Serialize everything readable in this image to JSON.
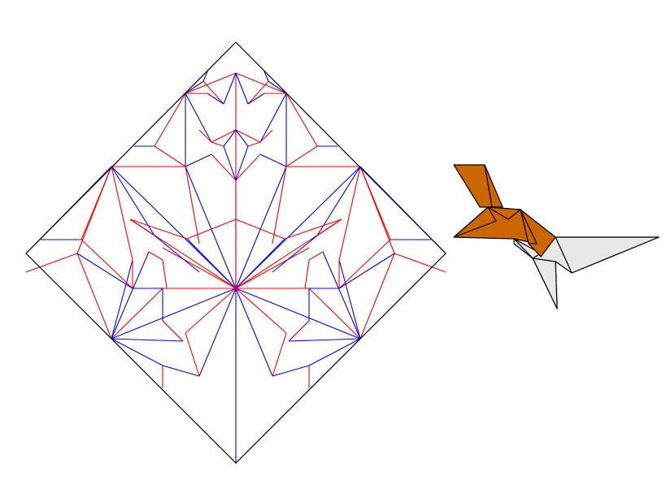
{
  "colors": {
    "border": "#000000",
    "mountain": "#ff0000",
    "valley": "#0000ff",
    "model_front": "#cc6600",
    "model_back": "#e8e8e8",
    "model_edge": "#000000"
  },
  "diagram": {
    "crease_pattern": "origami-crease-pattern",
    "folded_model": "origami-folded-bird"
  }
}
